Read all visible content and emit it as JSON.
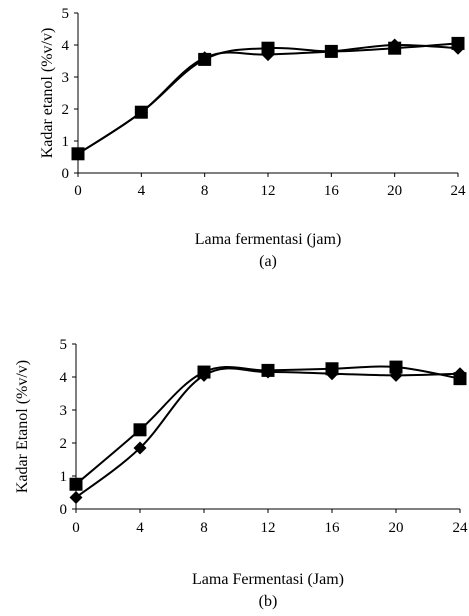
{
  "chart_data": [
    {
      "type": "line",
      "caption": "(a)",
      "xlabel": "Lama fermentasi (jam)",
      "ylabel": "Kadar etanol (%v/v)",
      "x": [
        0,
        4,
        8,
        12,
        16,
        20,
        24
      ],
      "xticks": [
        "0",
        "4",
        "8",
        "12",
        "16",
        "20",
        "24"
      ],
      "yticks": [
        "0",
        "1",
        "2",
        "3",
        "4",
        "5"
      ],
      "ylim": [
        0,
        5
      ],
      "grid": false,
      "series": [
        {
          "marker": "diamond",
          "values": [
            0.6,
            1.9,
            3.6,
            3.7,
            3.8,
            4.0,
            3.9
          ]
        },
        {
          "marker": "square",
          "values": [
            0.6,
            1.9,
            3.55,
            3.9,
            3.8,
            3.9,
            4.05
          ]
        }
      ]
    },
    {
      "type": "line",
      "caption": "(b)",
      "xlabel": "Lama Fermentasi (Jam)",
      "ylabel": "Kadar Etanol (%v/v)",
      "x": [
        0,
        4,
        8,
        12,
        16,
        20,
        24
      ],
      "xticks": [
        "0",
        "4",
        "8",
        "12",
        "16",
        "20",
        "24"
      ],
      "yticks": [
        "0",
        "1",
        "2",
        "3",
        "4",
        "5"
      ],
      "ylim": [
        0,
        5
      ],
      "grid": false,
      "series": [
        {
          "marker": "diamond",
          "values": [
            0.35,
            1.85,
            4.05,
            4.15,
            4.1,
            4.05,
            4.1
          ]
        },
        {
          "marker": "square",
          "values": [
            0.75,
            2.4,
            4.15,
            4.2,
            4.25,
            4.3,
            3.95
          ]
        }
      ]
    }
  ]
}
